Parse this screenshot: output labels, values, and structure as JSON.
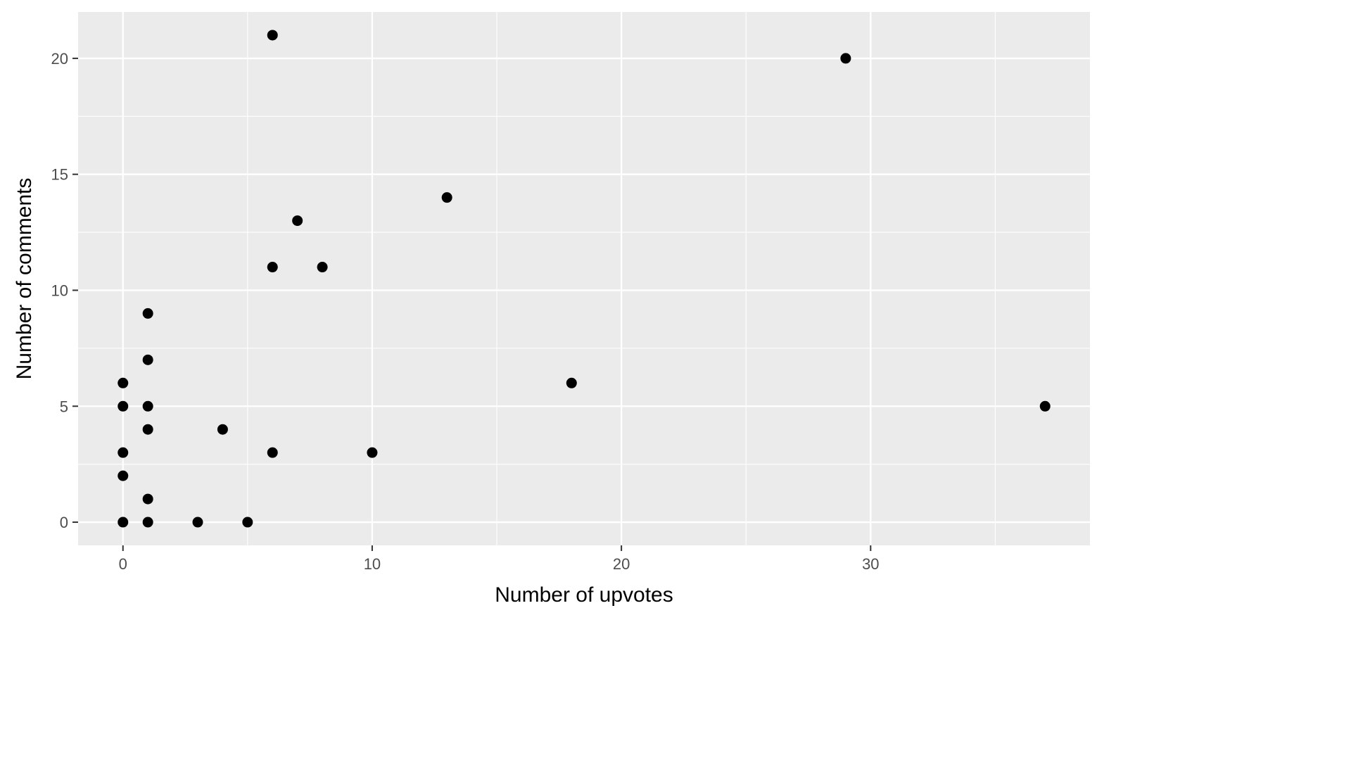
{
  "chart_data": {
    "type": "scatter",
    "title": "",
    "xlabel": "Number of upvotes",
    "ylabel": "Number of comments",
    "xlim": [
      -1.8,
      38.8
    ],
    "ylim": [
      -1.0,
      22.0
    ],
    "x_ticks": [
      0,
      10,
      20,
      30
    ],
    "y_ticks": [
      0,
      5,
      10,
      15,
      20
    ],
    "x_minor": [
      5,
      15,
      25,
      35
    ],
    "y_minor": [
      2.5,
      7.5,
      12.5,
      17.5
    ],
    "grid": true,
    "colors": {
      "panel": "#ebebeb",
      "grid": "#ffffff",
      "point": "#000000",
      "tick": "#333333"
    },
    "points": [
      {
        "x": 6,
        "y": 21
      },
      {
        "x": 29,
        "y": 20
      },
      {
        "x": 13,
        "y": 14
      },
      {
        "x": 7,
        "y": 13
      },
      {
        "x": 6,
        "y": 11
      },
      {
        "x": 8,
        "y": 11
      },
      {
        "x": 1,
        "y": 9
      },
      {
        "x": 1,
        "y": 7
      },
      {
        "x": 0,
        "y": 6
      },
      {
        "x": 18,
        "y": 6
      },
      {
        "x": 0,
        "y": 5
      },
      {
        "x": 1,
        "y": 5
      },
      {
        "x": 37,
        "y": 5
      },
      {
        "x": 1,
        "y": 4
      },
      {
        "x": 4,
        "y": 4
      },
      {
        "x": 0,
        "y": 3
      },
      {
        "x": 6,
        "y": 3
      },
      {
        "x": 10,
        "y": 3
      },
      {
        "x": 0,
        "y": 2
      },
      {
        "x": 1,
        "y": 1
      },
      {
        "x": 0,
        "y": 0
      },
      {
        "x": 1,
        "y": 0
      },
      {
        "x": 3,
        "y": 0
      },
      {
        "x": 5,
        "y": 0
      }
    ]
  }
}
